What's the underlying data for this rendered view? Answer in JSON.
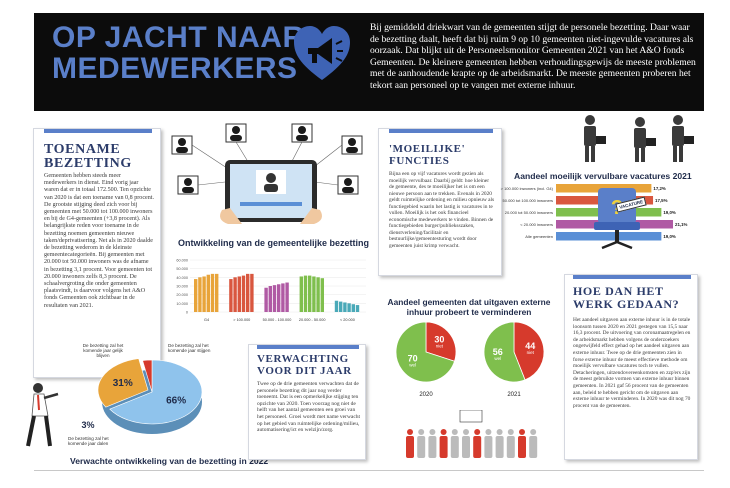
{
  "header": {
    "title_line1": "OP JACHT NAAR",
    "title_line2": "MEDEWERKERS",
    "intro": "Bij gemiddeld driekwart van de gemeenten stijgt de personele bezetting. Daar waar de bezetting daalt, heeft dat bij ruim 9 op 10 gemeenten niet-ingevulde vacatures als oorzaak. Dat blijkt uit de Personeelsmonitor Gemeenten 2021 van het A&O fonds Gemeenten. De kleinere gemeenten hebben verhoudingsgewijs de meeste problemen met de aanhoudende krapte op de arbeidsmarkt. De meeste gemeenten proberen het tekort aan personeel op te vangen met externe inhuur.",
    "icon": "megaphone-heart-icon"
  },
  "toename": {
    "title_line1": "TOENAME",
    "title_line2": "BEZETTING",
    "body": "Gemeenten hebben steeds meer medewerkers in dienst. Eind vorig jaar waren dat er in totaal 172.500. Ten opzichte van 2020 is dat een toename van 0,8 procent. De grootste stijging deed zich voor bij gemeenten met 50.000 tot 100.000 inwoners en bij de G4-gemeenten (+3,8 procent). Als belangrijkste reden voor toename in de bezetting noemen gemeenten nieuwe taken/deprivatisering. Net als in 2020 daalde de bezetting wederom in de kleinste gemeentecategorieën. Bij gemeenten met 20.000 tot 50.000 inwoners was de afname in bezetting 3,1 procent. Voor gemeenten tot 20.000 inwoners zelfs 8,3 procent. De schaalvergroting die onder gemeenten plaatsvindt, is daarvoor volgens het A&O fonds Gemeenten ook zichtbaar in de resultaten van 2021."
  },
  "moeilijke": {
    "title_line1": "'MOEILIJKE'",
    "title_line2": "FUNCTIES",
    "body": "Bijna een op vijf vacatures wordt gezien als moeilijk vervulbaar. Daarbij geldt: hoe kleiner de gemeente, des te moeilijker het is om een nieuwe persoon aan te trekken. Evenals in 2020 geldt ruimtelijke ordening en milieu opnieuw als functiegebied waarin het lastig is vacatures in te vullen. Moeilijk is het ook financieel economische medewerkers te vinden. Binnen de functiegebieden burger/publieksszaken, dienstverlening/facilitair en bestuurlijke/gemeentesturing wordt door gemeenten juist krimp verwacht."
  },
  "verwachting": {
    "title_line1": "VERWACHTING",
    "title_line2": "VOOR DIT JAAR",
    "body": "Twee op de drie gemeenten verwachten dat de personele bezetting dit jaar nog verder toeneemt. Dat is een opmerkelijke stijging ten opzichte van 2020. Toen voorzag nog niet de helft van het aantal gemeenten een groei van het personeel. Groei wordt met name verwacht op het gebied van ruimtelijke ordening/milieu, automatisering/ict en welzijn/zorg."
  },
  "hoe": {
    "title_line1": "HOE DAN HET",
    "title_line2": "WERK GEDAAN?",
    "body": "Het aandeel uitgaven aan externe inhuur is in de totale loonsom tussen 2020 en 2021 gestegen van 15,5 naar 16,3 procent. De uitvoering van coronamaatregelen en de arbeidsmarkt hebben volgens de onderzoekers ongetwijfeld effect gehad op het aandeel uitgaven aan externe inhuur. Twee op de drie gemeenten zien in forse externe inhuur de meest effectieve methode om moeilijk vervulbare vacatures toch te vullen. Detacheringen, uitzendovereenkomsten en zzp'ers zijn de meest gebruikte vormen van externe inhuur binnen gemeenten. In 2021 gaf 56 procent van de gemeenten aan, beleid te hebben gericht om de uitgaven aan externe inhuur te verminderen. In 2020 was dit nog 70 procent van de gemeenten."
  },
  "vacancy_sign": "VACATURE",
  "chart_data": [
    {
      "type": "bar",
      "title": "Ontwikkeling van de gemeentelijke bezetting",
      "yticks": [
        "60.000",
        "50.000",
        "40.000",
        "30.000",
        "20.000",
        "10.000",
        "0"
      ],
      "ylim": [
        0,
        60000
      ],
      "categories": [
        "G4",
        "> 100.000",
        "50.000 - 100.000",
        "20.000 - 50.000",
        "< 20.000"
      ],
      "colors": [
        "#e8a43a",
        "#d9573f",
        "#b05aa4",
        "#7fbf4d",
        "#4aa9b8"
      ],
      "groups": [
        [
          38000,
          40000,
          41000,
          43000,
          44000,
          44000
        ],
        [
          38000,
          40000,
          41000,
          42000,
          44000,
          44000
        ],
        [
          28000,
          30000,
          31000,
          32000,
          33000,
          34000
        ],
        [
          41000,
          42000,
          42000,
          41000,
          40000,
          39000
        ],
        [
          13000,
          12000,
          11000,
          10000,
          9000,
          8000
        ]
      ]
    },
    {
      "type": "bar",
      "orientation": "horizontal",
      "title": "Aandeel moeilijk vervulbare vacatures 2021",
      "categories": [
        "> 100.000 inwoners (incl. G4)",
        "50.000 tot 100.000 inwoners",
        "20.000 tot 50.000 inwoners",
        "< 20.000 inwoners",
        "Alle gemeenten"
      ],
      "values": [
        17.2,
        17.5,
        19.0,
        21.1,
        19.0
      ],
      "labels": [
        "17,2%",
        "17,5%",
        "19,0%",
        "21,1%",
        "19,0%"
      ],
      "colors": [
        "#e8a43a",
        "#d9573f",
        "#7fbf4d",
        "#b05aa4",
        "#5a8fd6"
      ]
    },
    {
      "type": "pie",
      "title": "Aandeel gemeenten dat uitgaven externe inhuur probeert te verminderen",
      "pies": [
        {
          "year": "2020",
          "slices": [
            {
              "label": "wel",
              "value": 70,
              "color": "#7fbf4d"
            },
            {
              "label": "niet",
              "value": 30,
              "color": "#d63a2c"
            }
          ]
        },
        {
          "year": "2021",
          "slices": [
            {
              "label": "wel",
              "value": 56,
              "color": "#7fbf4d"
            },
            {
              "label": "niet",
              "value": 44,
              "color": "#d63a2c"
            }
          ]
        }
      ]
    },
    {
      "type": "pie",
      "title": "Verwachte ontwikkeling van de bezetting in 2022",
      "slices": [
        {
          "label": "De bezetting zal het komende jaar stijgen",
          "value": 66,
          "text": "66%",
          "color": "#8fc3ec"
        },
        {
          "label": "De bezetting zal het komende jaar gelijk blijven",
          "value": 31,
          "text": "31%",
          "color": "#e8a43a"
        },
        {
          "label": "De bezetting zal het komende jaar dalen",
          "value": 3,
          "text": "3%",
          "color": "#d63a2c"
        }
      ]
    }
  ]
}
